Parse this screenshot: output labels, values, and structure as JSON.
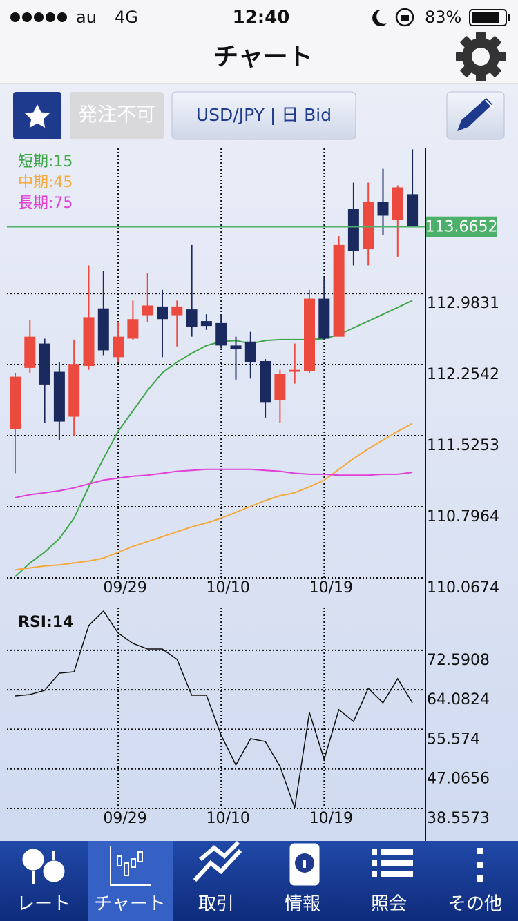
{
  "status_bar": {
    "carrier": "au",
    "network": "4G",
    "time": "12:40",
    "battery": "83%"
  },
  "header": {
    "title": "チャート"
  },
  "toolbar": {
    "order_button": "発注不可",
    "symbol_button": "USD/JPY | 日 Bid"
  },
  "price_chart": {
    "type": "candlestick",
    "categories": [
      null,
      null,
      null,
      null,
      null,
      null,
      null,
      "09/29",
      null,
      null,
      null,
      null,
      null,
      null,
      "10/10",
      null,
      null,
      null,
      null,
      null,
      null,
      "10/19",
      null,
      null,
      null,
      null,
      null,
      null
    ],
    "open": [
      111.59,
      112.22,
      112.47,
      112.18,
      111.72,
      112.24,
      112.83,
      112.33,
      112.52,
      112.76,
      112.85,
      112.76,
      112.82,
      112.7,
      112.68,
      112.45,
      112.49,
      112.29,
      111.89,
      112.18,
      112.19,
      112.93,
      112.54,
      113.85,
      113.44,
      113.92,
      113.74,
      114.0
    ],
    "high": [
      112.17,
      112.71,
      112.52,
      112.28,
      112.51,
      113.27,
      113.21,
      112.69,
      112.91,
      113.19,
      113.02,
      112.91,
      113.48,
      112.77,
      112.77,
      112.54,
      112.59,
      112.31,
      112.2,
      112.47,
      113.02,
      113.14,
      113.57,
      114.12,
      114.12,
      114.26,
      114.09,
      114.46
    ],
    "low": [
      111.14,
      112.17,
      111.66,
      111.48,
      111.52,
      112.2,
      112.35,
      112.28,
      112.51,
      112.69,
      112.33,
      112.44,
      112.54,
      112.61,
      112.42,
      112.1,
      112.11,
      111.71,
      111.66,
      112.06,
      112.17,
      112.51,
      112.54,
      113.27,
      113.27,
      113.58,
      113.36,
      113.67
    ],
    "close": [
      112.13,
      112.54,
      112.05,
      111.67,
      112.26,
      112.74,
      112.4,
      112.54,
      112.72,
      112.86,
      112.72,
      112.85,
      112.64,
      112.65,
      112.45,
      112.41,
      112.28,
      111.87,
      112.16,
      112.2,
      112.93,
      112.52,
      113.48,
      113.42,
      113.92,
      113.78,
      114.07,
      113.67
    ],
    "up_color": "#ec4a3f",
    "down_color": "#1b2a5e",
    "moving_averages": [
      {
        "name": "短期:15",
        "color": "#3fa64a",
        "values": [
          110.08,
          110.22,
          110.33,
          110.47,
          110.68,
          111.0,
          111.29,
          111.57,
          111.78,
          111.99,
          112.17,
          112.28,
          112.37,
          112.45,
          112.49,
          112.5,
          112.47,
          112.5,
          112.51,
          112.51,
          112.51,
          112.52,
          112.56,
          112.63,
          112.7,
          112.77,
          112.84,
          112.91
        ]
      },
      {
        "name": "中期:45",
        "color": "#f5a93a",
        "values": [
          110.15,
          110.17,
          110.19,
          110.2,
          110.22,
          110.24,
          110.27,
          110.33,
          110.39,
          110.44,
          110.49,
          110.54,
          110.59,
          110.63,
          110.68,
          110.74,
          110.8,
          110.86,
          110.91,
          110.94,
          111.0,
          111.07,
          111.18,
          111.29,
          111.39,
          111.48,
          111.57,
          111.65
        ]
      },
      {
        "name": "長期:75",
        "color": "#e040d8",
        "values": [
          110.89,
          110.92,
          110.94,
          110.96,
          110.99,
          111.03,
          111.07,
          111.09,
          111.11,
          111.12,
          111.14,
          111.16,
          111.17,
          111.18,
          111.18,
          111.18,
          111.18,
          111.17,
          111.16,
          111.14,
          111.13,
          111.13,
          111.12,
          111.12,
          111.12,
          111.13,
          111.13,
          111.15
        ]
      }
    ],
    "last_price": 113.6652,
    "last_price_color": "#4caf6a",
    "ylim": [
      110.0674,
      114.47
    ],
    "yticks": [
      110.0674,
      110.7964,
      111.5253,
      112.2542,
      112.9831
    ],
    "grid": true
  },
  "rsi_chart": {
    "type": "line",
    "name": "RSI:14",
    "color": "#111111",
    "categories": [
      null,
      null,
      null,
      null,
      null,
      null,
      null,
      "09/29",
      null,
      null,
      null,
      null,
      null,
      null,
      "10/10",
      null,
      null,
      null,
      null,
      null,
      null,
      "10/19",
      null,
      null,
      null,
      null,
      null,
      null
    ],
    "values": [
      62.76,
      63.06,
      63.95,
      67.67,
      67.96,
      77.91,
      81.03,
      76.28,
      74.05,
      72.86,
      72.86,
      70.64,
      62.91,
      62.91,
      54.3,
      47.92,
      53.56,
      52.96,
      47.62,
      38.71,
      59.2,
      49.1,
      59.8,
      57.27,
      64.4,
      61.28,
      66.48,
      61.28
    ],
    "ylim": [
      38.5573,
      81.77
    ],
    "yticks": [
      38.5573,
      47.0656,
      55.574,
      64.0824,
      72.5908
    ],
    "grid": true
  },
  "tab_bar": {
    "tabs": [
      "レート",
      "チャート",
      "取引",
      "情報",
      "照会",
      "その他"
    ],
    "active": 1
  }
}
